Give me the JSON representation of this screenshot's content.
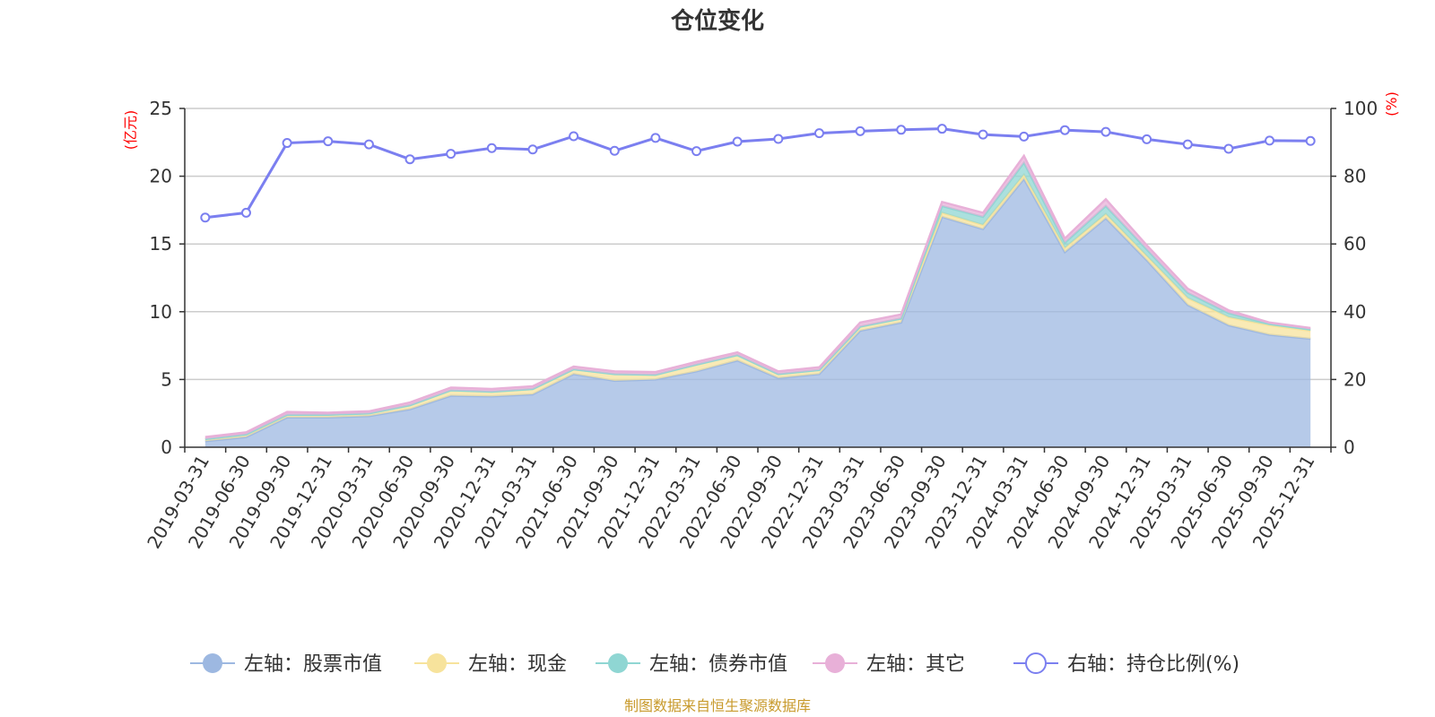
{
  "chart_data": {
    "type": "area",
    "title": "仓位变化",
    "left_axis_unit": "(亿元)",
    "right_axis_unit": "(%)",
    "left_ylim": [
      0,
      25
    ],
    "left_ticks": [
      "0",
      "5",
      "10",
      "15",
      "20",
      "25"
    ],
    "right_ylim": [
      0,
      100
    ],
    "right_ticks": [
      "0",
      "20",
      "40",
      "60",
      "80",
      "100"
    ],
    "grid": true,
    "legend_position": "bottom",
    "categories": [
      "2019-03-31",
      "2019-06-30",
      "2019-09-30",
      "2019-12-31",
      "2020-03-31",
      "2020-06-30",
      "2020-09-30",
      "2020-12-31",
      "2021-03-31",
      "2021-06-30",
      "2021-09-30",
      "2021-12-31",
      "2022-03-31",
      "2022-06-30",
      "2022-09-30",
      "2022-12-31",
      "2023-03-31",
      "2023-06-30",
      "2023-09-30",
      "2023-12-31",
      "2024-03-31",
      "2024-06-30",
      "2024-09-30",
      "2024-12-31",
      "2025-03-31",
      "2025-06-30",
      "2025-09-30",
      "2025-12-31"
    ],
    "series": [
      {
        "name": "左轴：股票市值",
        "axis": "left",
        "kind": "stacked-area",
        "color": "#9db8e1",
        "values": [
          0.45,
          0.75,
          2.2,
          2.2,
          2.3,
          2.8,
          3.8,
          3.75,
          3.9,
          5.4,
          4.9,
          5.0,
          5.6,
          6.4,
          5.1,
          5.4,
          8.6,
          9.2,
          17.0,
          16.1,
          19.8,
          14.4,
          16.9,
          13.8,
          10.5,
          9.0,
          8.3,
          8.0
        ]
      },
      {
        "name": "左轴：现金",
        "axis": "left",
        "kind": "stacked-area",
        "color": "#f7e39c",
        "values": [
          0.15,
          0.2,
          0.2,
          0.2,
          0.2,
          0.3,
          0.4,
          0.35,
          0.4,
          0.35,
          0.5,
          0.35,
          0.5,
          0.4,
          0.3,
          0.3,
          0.3,
          0.3,
          0.3,
          0.3,
          0.3,
          0.3,
          0.3,
          0.3,
          0.5,
          0.6,
          0.7,
          0.6
        ]
      },
      {
        "name": "左轴：债券市值",
        "axis": "left",
        "kind": "stacked-area",
        "color": "#8fd6d3",
        "values": [
          0,
          0,
          0,
          0,
          0,
          0,
          0,
          0,
          0,
          0,
          0,
          0,
          0,
          0,
          0,
          0,
          0,
          0,
          0.5,
          0.6,
          0.9,
          0.4,
          0.6,
          0.5,
          0.4,
          0.3,
          0.1,
          0.1
        ]
      },
      {
        "name": "左轴：其它",
        "axis": "left",
        "kind": "stacked-area",
        "color": "#e8b0d8",
        "values": [
          0.15,
          0.15,
          0.2,
          0.15,
          0.15,
          0.2,
          0.2,
          0.2,
          0.2,
          0.2,
          0.2,
          0.2,
          0.2,
          0.2,
          0.2,
          0.2,
          0.3,
          0.3,
          0.3,
          0.3,
          0.5,
          0.3,
          0.5,
          0.3,
          0.3,
          0.2,
          0.1,
          0.1
        ]
      },
      {
        "name": "右轴：持仓比例(%)",
        "axis": "right",
        "kind": "line",
        "color": "#7b7ff0",
        "values": [
          67.8,
          69.2,
          89.8,
          90.3,
          89.4,
          85.0,
          86.6,
          88.3,
          87.9,
          91.8,
          87.5,
          91.3,
          87.4,
          90.2,
          91.0,
          92.7,
          93.3,
          93.7,
          94.0,
          92.3,
          91.7,
          93.6,
          93.1,
          90.9,
          89.4,
          88.1,
          90.5,
          90.4
        ]
      }
    ]
  },
  "source_note": "制图数据来自恒生聚源数据库"
}
